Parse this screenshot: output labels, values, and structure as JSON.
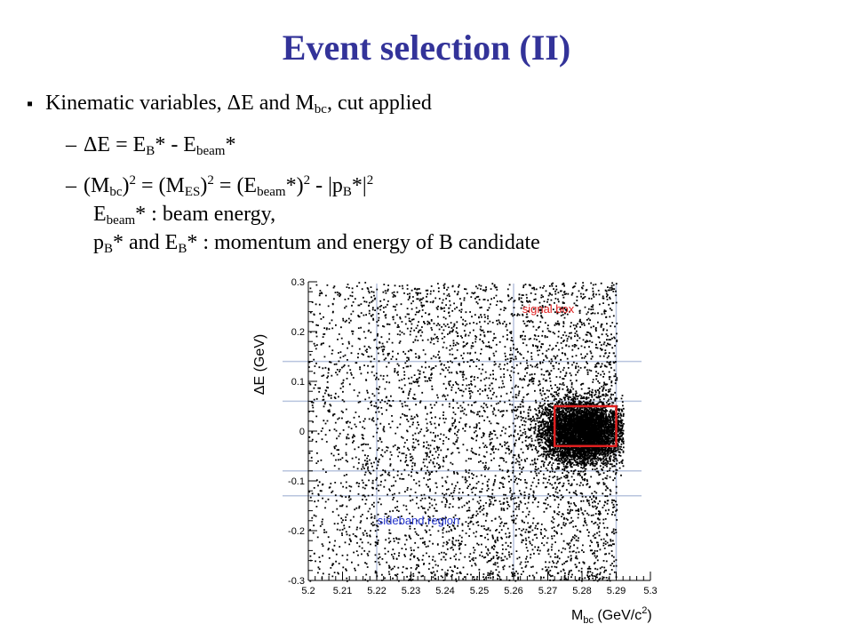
{
  "slide": {
    "title": "Event selection (II)",
    "bullet_marker": "▪",
    "bullet1": {
      "pre": "Kinematic variables, ΔE and M",
      "sub": "bc",
      "post": ", cut applied"
    },
    "sub1": {
      "dash": "–",
      "t1": "ΔE = E",
      "s1": "B",
      "t2": "* - E",
      "s2": "beam",
      "t3": "*"
    },
    "sub2": {
      "dash": "–",
      "l1": {
        "t1": "(M",
        "s1": "bc",
        "t2": ")",
        "p1": "2",
        "t3": " = (M",
        "s2": "ES",
        "t4": ")",
        "p2": "2",
        "t5": " = (E",
        "s3": "beam",
        "t6": "*)",
        "p3": "2",
        "t7": " - |p",
        "s4": "B",
        "t8": "*|",
        "p4": "2"
      },
      "l2": {
        "t1": "E",
        "s1": "beam",
        "t2": "* : beam energy,"
      },
      "l3": {
        "t1": "p",
        "s1": "B",
        "t2": "* and E",
        "s2": "B",
        "t3": "* : momentum and energy of B candidate"
      }
    }
  },
  "chart_data": {
    "type": "scatter",
    "xlabel": {
      "main": "M",
      "sub": "bc",
      "unit_pre": " (GeV/c",
      "unit_sup": "2",
      "unit_post": ")"
    },
    "ylabel": "ΔE (GeV)",
    "xlim": [
      5.2,
      5.3
    ],
    "ylim": [
      -0.3,
      0.3
    ],
    "xticks": [
      {
        "v": 5.2,
        "label": "5.2"
      },
      {
        "v": 5.21,
        "label": "5.21"
      },
      {
        "v": 5.22,
        "label": "5.22"
      },
      {
        "v": 5.23,
        "label": "5.23"
      },
      {
        "v": 5.24,
        "label": "5.24"
      },
      {
        "v": 5.25,
        "label": "5.25"
      },
      {
        "v": 5.26,
        "label": "5.26"
      },
      {
        "v": 5.27,
        "label": "5.27"
      },
      {
        "v": 5.28,
        "label": "5.28"
      },
      {
        "v": 5.29,
        "label": "5.29"
      },
      {
        "v": 5.3,
        "label": "5.3"
      }
    ],
    "yticks": [
      {
        "v": -0.3,
        "label": "-0.3"
      },
      {
        "v": -0.2,
        "label": "-0.2"
      },
      {
        "v": -0.1,
        "label": "-0.1"
      },
      {
        "v": 0,
        "label": "0"
      },
      {
        "v": 0.1,
        "label": "0.1"
      },
      {
        "v": 0.2,
        "label": "0.2"
      },
      {
        "v": 0.3,
        "label": "0.3"
      }
    ],
    "background_events": {
      "x_range": [
        5.2,
        5.29
      ],
      "y_range": [
        -0.3,
        0.3
      ]
    },
    "signal_peak": {
      "x_center": 5.28,
      "y_center": 0.0,
      "x_sigma": 0.006,
      "y_sigma": 0.03
    },
    "signal_box": {
      "x": [
        5.272,
        5.29
      ],
      "y": [
        -0.03,
        0.05
      ],
      "label": "signal box",
      "color": "#e02020"
    },
    "sideband_region": {
      "label": "sideband region",
      "color": "#2233cc"
    },
    "guide_lines": {
      "vertical_x": [
        5.22,
        5.26,
        5.29
      ],
      "horizontal_y": [
        0.14,
        0.06,
        -0.08,
        -0.13
      ],
      "color": "#b8c4de"
    }
  }
}
